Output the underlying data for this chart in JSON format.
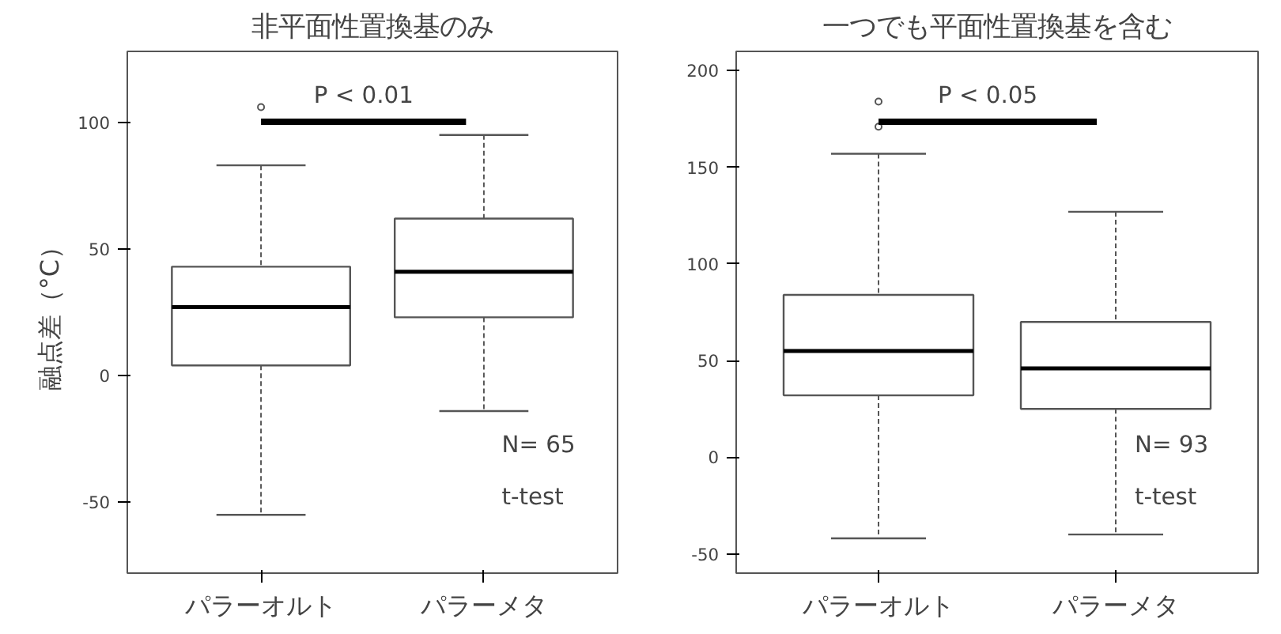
{
  "chart_data": [
    {
      "type": "box",
      "title": "非平面性置換基のみ",
      "ylabel": "融点差（°C）",
      "categories": [
        "パラーオルト",
        "パラーメタ"
      ],
      "boxes": [
        {
          "low": -55,
          "q1": 4,
          "median": 27,
          "q3": 43,
          "high": 83,
          "outliers": [
            106
          ]
        },
        {
          "low": -14,
          "q1": 23,
          "median": 41,
          "q3": 62,
          "high": 95
        }
      ],
      "ylim": [
        -78,
        128
      ],
      "yticks": [
        -50,
        0,
        50,
        100
      ],
      "grid": false,
      "annotations": [
        "P < 0.01",
        "N= 65",
        "t-test"
      ]
    },
    {
      "type": "box",
      "title": "一つでも平面性置換基を含む",
      "categories": [
        "パラーオルト",
        "パラーメタ"
      ],
      "boxes": [
        {
          "low": -42,
          "q1": 32,
          "median": 55,
          "q3": 84,
          "high": 157,
          "outliers": [
            171,
            184
          ]
        },
        {
          "low": -40,
          "q1": 25,
          "median": 46,
          "q3": 70,
          "high": 127
        }
      ],
      "ylim": [
        -60,
        210
      ],
      "yticks": [
        -50,
        0,
        50,
        100,
        150,
        200
      ],
      "grid": false,
      "annotations": [
        "P < 0.05",
        "N= 93",
        "t-test"
      ]
    }
  ]
}
